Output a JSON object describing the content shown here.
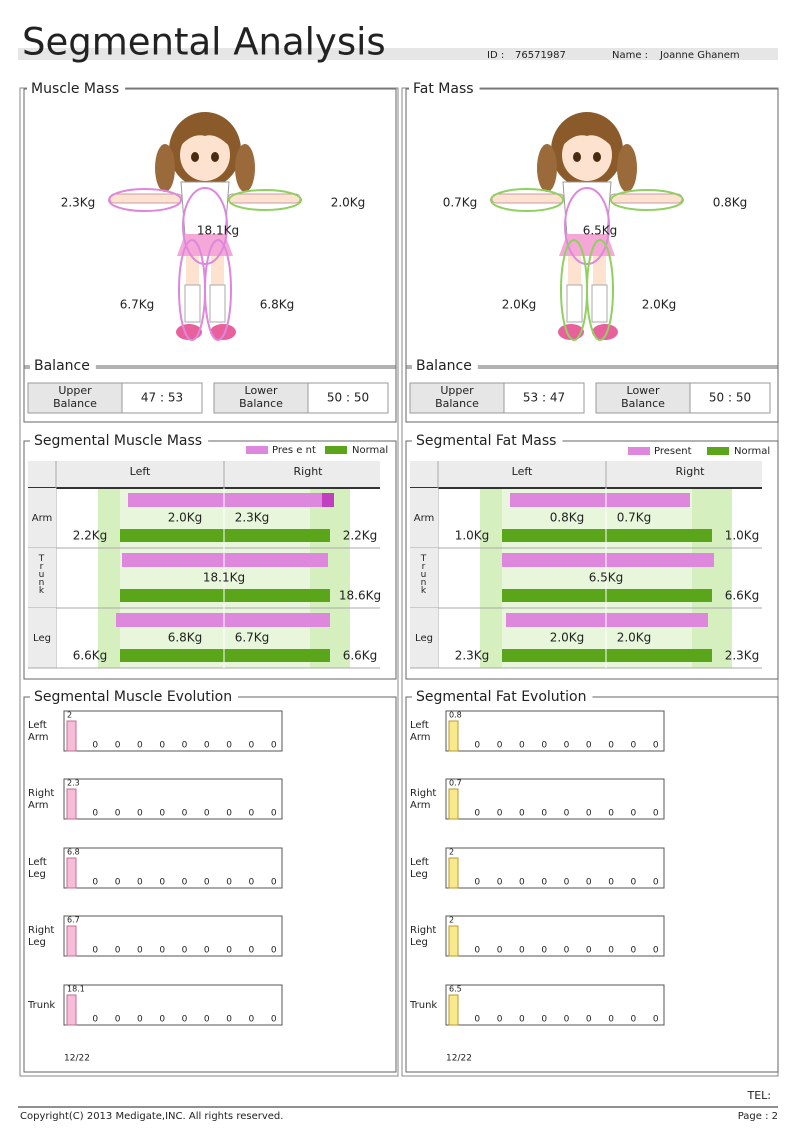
{
  "header": {
    "title": "Segmental Analysis",
    "id_label": "ID :",
    "id": "76571987",
    "name_label": "Name :",
    "name": "Joanne Ghanem"
  },
  "panels": [
    {
      "mass_title": "Muscle Mass",
      "figure": {
        "arm_left": "2.3Kg",
        "arm_right": "2.0Kg",
        "trunk": "18.1Kg",
        "leg_left": "6.7Kg",
        "leg_right": "6.8Kg"
      },
      "balance": {
        "title": "Balance",
        "upper_label": [
          "Upper",
          "Balance"
        ],
        "upper": "47 : 53",
        "lower_label": [
          "Lower",
          "Balance"
        ],
        "lower": "50 : 50"
      },
      "segmental": {
        "title": "Segmental Muscle Mass",
        "legend": [
          "Pres e nt",
          "Normal"
        ],
        "columns": [
          "Left",
          "Right"
        ],
        "rows": [
          {
            "label": "Arm",
            "present": [
              "2.0Kg",
              "2.3Kg"
            ],
            "normal": [
              "2.2Kg",
              "2.2Kg"
            ]
          },
          {
            "label": "Trunk",
            "present": [
              "18.1Kg"
            ],
            "normal": [
              "18.6Kg"
            ]
          },
          {
            "label": "Leg",
            "present": [
              "6.8Kg",
              "6.7Kg"
            ],
            "normal": [
              "6.6Kg",
              "6.6Kg"
            ]
          }
        ]
      },
      "evolution": {
        "title": "Segmental Muscle Evolution",
        "date": "12/22",
        "rows": [
          {
            "label": [
              "Left",
              "Arm"
            ],
            "values": [
              2,
              0,
              0,
              0,
              0,
              0,
              0,
              0,
              0,
              0
            ]
          },
          {
            "label": [
              "Right",
              "Arm"
            ],
            "values": [
              2.3,
              0,
              0,
              0,
              0,
              0,
              0,
              0,
              0,
              0
            ]
          },
          {
            "label": [
              "Left",
              "Leg"
            ],
            "values": [
              6.8,
              0,
              0,
              0,
              0,
              0,
              0,
              0,
              0,
              0
            ]
          },
          {
            "label": [
              "Right",
              "Leg"
            ],
            "values": [
              6.7,
              0,
              0,
              0,
              0,
              0,
              0,
              0,
              0,
              0
            ]
          },
          {
            "label": [
              "Trunk"
            ],
            "values": [
              18.1,
              0,
              0,
              0,
              0,
              0,
              0,
              0,
              0,
              0
            ]
          }
        ]
      }
    },
    {
      "mass_title": "Fat Mass",
      "figure": {
        "arm_left": "0.7Kg",
        "arm_right": "0.8Kg",
        "trunk": "6.5Kg",
        "leg_left": "2.0Kg",
        "leg_right": "2.0Kg"
      },
      "balance": {
        "title": "Balance",
        "upper_label": [
          "Upper",
          "Balance"
        ],
        "upper": "53 : 47",
        "lower_label": [
          "Lower",
          "Balance"
        ],
        "lower": "50 : 50"
      },
      "segmental": {
        "title": "Segmental Fat Mass",
        "legend": [
          "Present",
          "Normal"
        ],
        "columns": [
          "Left",
          "Right"
        ],
        "rows": [
          {
            "label": "Arm",
            "present": [
              "0.8Kg",
              "0.7Kg"
            ],
            "normal": [
              "1.0Kg",
              "1.0Kg"
            ]
          },
          {
            "label": "Trunk",
            "present": [
              "6.5Kg"
            ],
            "normal": [
              "6.6Kg"
            ]
          },
          {
            "label": "Leg",
            "present": [
              "2.0Kg",
              "2.0Kg"
            ],
            "normal": [
              "2.3Kg",
              "2.3Kg"
            ]
          }
        ]
      },
      "evolution": {
        "title": "Segmental Fat Evolution",
        "date": "12/22",
        "rows": [
          {
            "label": [
              "Left",
              "Arm"
            ],
            "values": [
              0.8,
              0,
              0,
              0,
              0,
              0,
              0,
              0,
              0,
              0
            ]
          },
          {
            "label": [
              "Right",
              "Arm"
            ],
            "values": [
              0.7,
              0,
              0,
              0,
              0,
              0,
              0,
              0,
              0,
              0
            ]
          },
          {
            "label": [
              "Left",
              "Leg"
            ],
            "values": [
              2,
              0,
              0,
              0,
              0,
              0,
              0,
              0,
              0,
              0
            ]
          },
          {
            "label": [
              "Right",
              "Leg"
            ],
            "values": [
              2,
              0,
              0,
              0,
              0,
              0,
              0,
              0,
              0,
              0
            ]
          },
          {
            "label": [
              "Trunk"
            ],
            "values": [
              6.5,
              0,
              0,
              0,
              0,
              0,
              0,
              0,
              0,
              0
            ]
          }
        ]
      }
    }
  ],
  "footer": {
    "tel": "TEL:",
    "copyright": "Copyright(C) 2013 Medigate,INC. All rights reserved.",
    "page": "Page : 2"
  }
}
